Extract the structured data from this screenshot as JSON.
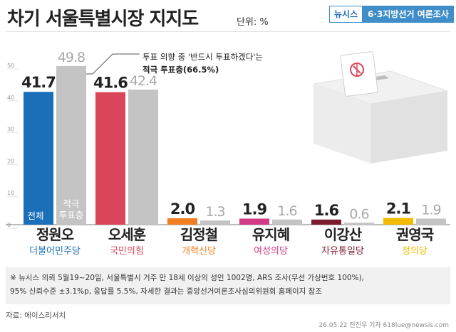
{
  "header": {
    "title": "차기 서울특별시장 지지도",
    "unit": "단위: %",
    "source_badge": "뉴시스",
    "survey_badge": "6·3지방선거 여론조사"
  },
  "callout": {
    "line1": "투표 의향 중 '반드시 투표하겠다'는",
    "line2": "적극 투표층(66.5%)"
  },
  "legend": {
    "total": "전체",
    "active": "적극\n투표층"
  },
  "colors": {
    "active_bar": "#c4c4c4",
    "axis": "#999999"
  },
  "chart_data": {
    "type": "bar",
    "ylim": [
      0,
      50
    ],
    "yticks": [
      0,
      10,
      20,
      30,
      40,
      50
    ],
    "categories": [
      "정원오",
      "오세훈",
      "김정철",
      "유지혜",
      "이강산",
      "권영국"
    ],
    "parties": [
      "더불어민주당",
      "국민의힘",
      "개혁신당",
      "여성의당",
      "자유통일당",
      "정의당"
    ],
    "party_colors": [
      "#1a6fb8",
      "#d9465a",
      "#f07f22",
      "#d33a86",
      "#7b1b2d",
      "#f2ba00"
    ],
    "series": [
      {
        "name": "전체",
        "values": [
          41.7,
          41.6,
          2.0,
          1.9,
          1.6,
          2.1
        ]
      },
      {
        "name": "적극 투표층",
        "values": [
          49.8,
          42.4,
          1.3,
          1.6,
          0.6,
          1.9
        ]
      }
    ]
  },
  "footer": {
    "note_line1": "※ 뉴시스 의뢰 5월19~20일, 서울특별시 거주 만 18세 이상의 성인 1002명, ARS 조사(무선 가상번호 100%),",
    "note_line2": "95% 신뢰수준 ±3.1%p, 응답률 5.5%, 자세한 결과는 중앙선거여론조사심의위원회 홈페이지 참조",
    "source": "자료: 에이스리서치",
    "credit": "26.05.22 전진우 기자 618lue@newsis.com"
  }
}
